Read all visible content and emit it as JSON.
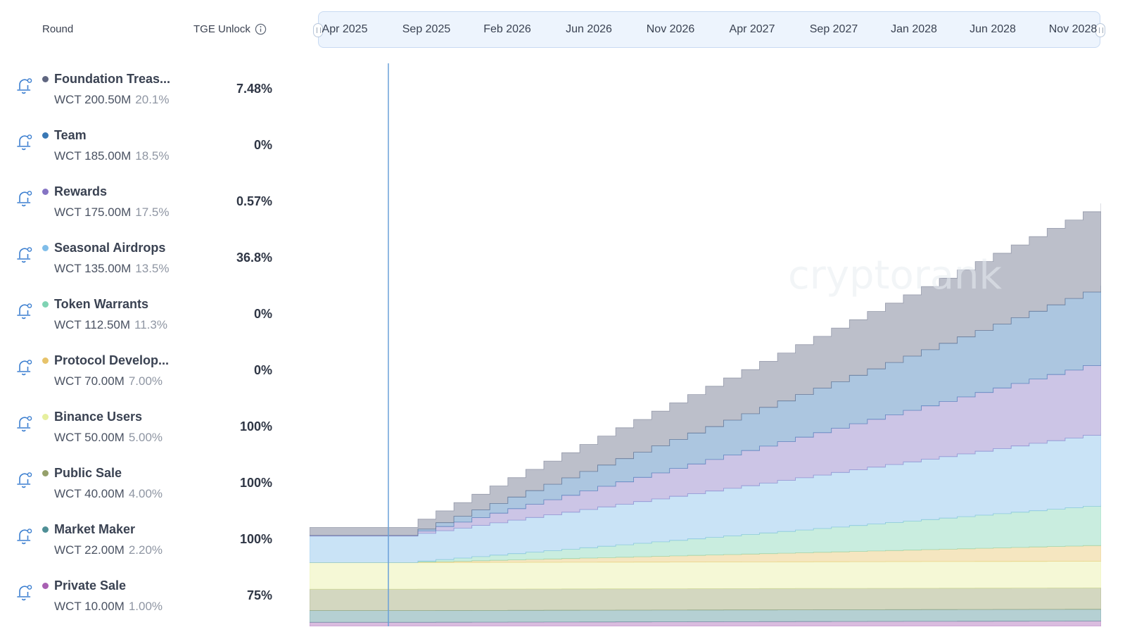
{
  "header": {
    "round": "Round",
    "tge_unlock": "TGE Unlock"
  },
  "icons": {
    "info": "info-icon",
    "bell": "bell-alert-icon"
  },
  "rounds": [
    {
      "name": "Foundation Treas...",
      "amount": "WCT 200.50M",
      "share": "20.1%",
      "tge": "7.48%",
      "color": "#5f6680"
    },
    {
      "name": "Team",
      "amount": "WCT 185.00M",
      "share": "18.5%",
      "tge": "0%",
      "color": "#3a78b5"
    },
    {
      "name": "Rewards",
      "amount": "WCT 175.00M",
      "share": "17.5%",
      "tge": "0.57%",
      "color": "#8574c4"
    },
    {
      "name": "Seasonal Airdrops",
      "amount": "WCT 135.00M",
      "share": "13.5%",
      "tge": "36.8%",
      "color": "#7fbde9"
    },
    {
      "name": "Token Warrants",
      "amount": "WCT 112.50M",
      "share": "11.3%",
      "tge": "0%",
      "color": "#7fd3b3"
    },
    {
      "name": "Protocol Develop...",
      "amount": "WCT 70.00M",
      "share": "7.00%",
      "tge": "0%",
      "color": "#e7c36a"
    },
    {
      "name": "Binance Users",
      "amount": "WCT 50.00M",
      "share": "5.00%",
      "tge": "100%",
      "color": "#e6ef9e"
    },
    {
      "name": "Public Sale",
      "amount": "WCT 40.00M",
      "share": "4.00%",
      "tge": "100%",
      "color": "#95a06a"
    },
    {
      "name": "Market Maker",
      "amount": "WCT 22.00M",
      "share": "2.20%",
      "tge": "100%",
      "color": "#4f8f96"
    },
    {
      "name": "Private Sale",
      "amount": "WCT 10.00M",
      "share": "1.00%",
      "tge": "75%",
      "color": "#a860b2"
    }
  ],
  "timeline": {
    "labels": [
      "Apr 2025",
      "Sep 2025",
      "Feb 2026",
      "Jun 2026",
      "Nov 2026",
      "Apr 2027",
      "Sep 2027",
      "Jan 2028",
      "Jun 2028",
      "Nov 2028"
    ],
    "range": [
      "2025-04",
      "2028-12"
    ]
  },
  "watermark": "cryptorank",
  "chart_data": {
    "type": "area",
    "stacked": true,
    "stepped": true,
    "unit": "WCT (M)",
    "x_range": [
      "2025-04-15",
      "2028-12-15"
    ],
    "today": "2025-05-01",
    "series": [
      {
        "name": "Private Sale",
        "total": 10,
        "tge_fraction": 0.75,
        "cliff_end": "2025-09-15",
        "vest_end": "2028-12-15",
        "color": "#a860b2"
      },
      {
        "name": "Market Maker",
        "total": 22,
        "tge_fraction": 1.0,
        "cliff_end": "2025-09-15",
        "vest_end": "2028-12-15",
        "color": "#4f8f96"
      },
      {
        "name": "Public Sale",
        "total": 40,
        "tge_fraction": 1.0,
        "cliff_end": "2025-09-15",
        "vest_end": "2028-12-15",
        "color": "#95a06a"
      },
      {
        "name": "Binance Users",
        "total": 50,
        "tge_fraction": 1.0,
        "cliff_end": "2025-09-15",
        "vest_end": "2028-12-15",
        "color": "#e6ef9e"
      },
      {
        "name": "Protocol Develop...",
        "total": 70,
        "tge_fraction": 0.0,
        "cliff_end": "2025-09-15",
        "vest_end": "2033-04-15",
        "color": "#e7c36a"
      },
      {
        "name": "Token Warrants",
        "total": 112.5,
        "tge_fraction": 0.0,
        "cliff_end": "2025-09-15",
        "vest_end": "2030-07-15",
        "color": "#7fd3b3"
      },
      {
        "name": "Seasonal Airdrops",
        "total": 135,
        "tge_fraction": 0.368,
        "cliff_end": "2025-09-15",
        "vest_end": "2028-12-15",
        "color": "#7fbde9"
      },
      {
        "name": "Rewards",
        "total": 175,
        "tge_fraction": 0.0057,
        "cliff_end": "2025-09-15",
        "vest_end": "2029-12-15",
        "color": "#8574c4"
      },
      {
        "name": "Team",
        "total": 185,
        "tge_fraction": 0.0,
        "cliff_end": "2025-09-15",
        "vest_end": "2029-12-15",
        "color": "#3a78b5"
      },
      {
        "name": "Foundation Treas...",
        "total": 200.5,
        "tge_fraction": 0.0748,
        "cliff_end": "2025-09-15",
        "vest_end": "2030-01-15",
        "color": "#5f6680"
      }
    ]
  }
}
